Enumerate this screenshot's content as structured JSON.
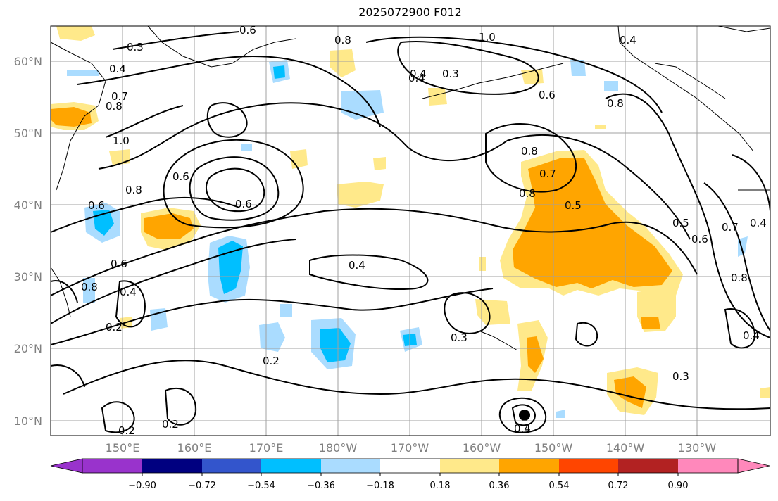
{
  "title": "2025072900 F012",
  "lat_labels": [
    "60°N",
    "50°N",
    "40°N",
    "30°N",
    "20°N",
    "10°N"
  ],
  "lon_labels": [
    "150°E",
    "160°E",
    "170°E",
    "180°W",
    "170°W",
    "160°W",
    "150°W",
    "140°W",
    "130°W"
  ],
  "colorbar": {
    "ticks": [
      "−0.90",
      "−0.72",
      "−0.54",
      "−0.36",
      "−0.18",
      "0.18",
      "0.36",
      "0.54",
      "0.72",
      "0.90"
    ],
    "colors": [
      "#9933cc",
      "#000080",
      "#3355cc",
      "#00bfff",
      "#aadcff",
      "#ffffff",
      "#ffe98a",
      "#ffa500",
      "#ff4500",
      "#b22222",
      "#ff88bb"
    ]
  },
  "contour_labels": [
    "0.3",
    "0.4",
    "0.7",
    "0.8",
    "1.0",
    "0.6",
    "0.8",
    "0.4",
    "0.3",
    "0.4",
    "0.6",
    "0.8",
    "0.8",
    "0.4",
    "0.7",
    "0.8",
    "0.6",
    "0.5",
    "0.8",
    "0.6",
    "0.5",
    "0.6",
    "0.7",
    "0.4",
    "0.8",
    "0.4",
    "0.6",
    "0.2",
    "0.4",
    "0.3",
    "0.2",
    "0.2",
    "0.2",
    "0.3",
    "0.4",
    "0.4",
    "0.6",
    "0.8",
    "1.0"
  ]
}
